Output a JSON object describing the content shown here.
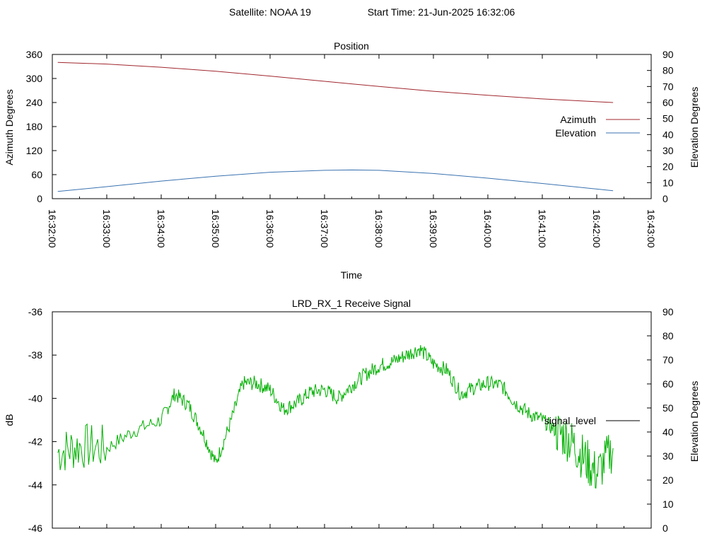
{
  "header": {
    "satellite": "Satellite: NOAA 19",
    "start_time": "Start Time: 21-Jun-2025 16:32:06"
  },
  "chart_data": [
    {
      "type": "line",
      "title": "Position",
      "xlabel": "Time",
      "ylabel": "Azimuth Degrees",
      "y2label": "Elevation Degrees",
      "x_ticks": [
        "16:32:00",
        "16:33:00",
        "16:34:00",
        "16:35:00",
        "16:36:00",
        "16:37:00",
        "16:38:00",
        "16:39:00",
        "16:40:00",
        "16:41:00",
        "16:42:00",
        "16:43:00"
      ],
      "xlim": [
        "16:32:00",
        "16:43:00"
      ],
      "ylim": [
        0,
        360
      ],
      "y_ticks": [
        "0",
        "60",
        "120",
        "180",
        "240",
        "300",
        "360"
      ],
      "y2lim": [
        0,
        90
      ],
      "y2_ticks": [
        "0",
        "10",
        "20",
        "30",
        "40",
        "50",
        "60",
        "70",
        "80",
        "90"
      ],
      "grid": false,
      "legend": "right",
      "series": [
        {
          "name": "Azimuth",
          "axis": "y",
          "color": "#a0272e",
          "x": [
            "16:32:06",
            "16:33:00",
            "16:34:00",
            "16:35:00",
            "16:36:00",
            "16:37:00",
            "16:38:00",
            "16:39:00",
            "16:40:00",
            "16:41:00",
            "16:42:00",
            "16:42:18"
          ],
          "values": [
            340,
            336,
            328,
            318,
            306,
            293,
            280,
            268,
            258,
            249,
            242,
            240
          ]
        },
        {
          "name": "Elevation",
          "axis": "y2",
          "color": "#3a72b0",
          "x": [
            "16:32:06",
            "16:33:00",
            "16:34:00",
            "16:35:00",
            "16:36:00",
            "16:37:00",
            "16:37:30",
            "16:38:00",
            "16:39:00",
            "16:40:00",
            "16:41:00",
            "16:42:00",
            "16:42:18"
          ],
          "values": [
            4.5,
            7.5,
            11,
            14,
            16.5,
            17.7,
            17.9,
            17.7,
            15.7,
            12.8,
            9.5,
            6,
            5
          ]
        }
      ]
    },
    {
      "type": "line",
      "title": "LRD_RX_1 Receive Signal",
      "ylabel": "dB",
      "y2label": "Elevation Degrees",
      "xlim": [
        "16:32:00",
        "16:43:00"
      ],
      "ylim": [
        -46,
        -36
      ],
      "y_ticks": [
        "-36",
        "-38",
        "-40",
        "-42",
        "-44",
        "-46"
      ],
      "y2lim": [
        0,
        90
      ],
      "y2_ticks": [
        "0",
        "10",
        "20",
        "30",
        "40",
        "50",
        "60",
        "70",
        "80",
        "90"
      ],
      "grid": false,
      "legend": "right",
      "series": [
        {
          "name": "signal_level",
          "color": "#00b000",
          "x": [
            "16:32:06",
            "16:32:30",
            "16:33:00",
            "16:33:30",
            "16:34:00",
            "16:34:15",
            "16:34:30",
            "16:34:45",
            "16:35:00",
            "16:35:15",
            "16:35:30",
            "16:35:45",
            "16:36:00",
            "16:36:15",
            "16:36:30",
            "16:36:45",
            "16:37:00",
            "16:37:15",
            "16:37:30",
            "16:37:45",
            "16:38:00",
            "16:38:15",
            "16:38:30",
            "16:38:45",
            "16:39:00",
            "16:39:15",
            "16:39:30",
            "16:39:45",
            "16:40:00",
            "16:40:15",
            "16:40:30",
            "16:40:45",
            "16:41:00",
            "16:41:15",
            "16:41:30",
            "16:41:45",
            "16:42:00",
            "16:42:18"
          ],
          "values": [
            -42.5,
            -42.2,
            -42.3,
            -41.5,
            -41.0,
            -39.8,
            -40.3,
            -41.5,
            -43.0,
            -41.3,
            -39.3,
            -39.3,
            -39.6,
            -40.5,
            -40.2,
            -39.7,
            -39.6,
            -40.0,
            -39.4,
            -38.9,
            -38.5,
            -38.3,
            -38.0,
            -37.7,
            -38.4,
            -38.7,
            -39.8,
            -39.5,
            -39.3,
            -39.4,
            -40.2,
            -40.7,
            -41.0,
            -41.5,
            -41.9,
            -42.7,
            -43.5,
            -42.3
          ]
        }
      ]
    }
  ]
}
